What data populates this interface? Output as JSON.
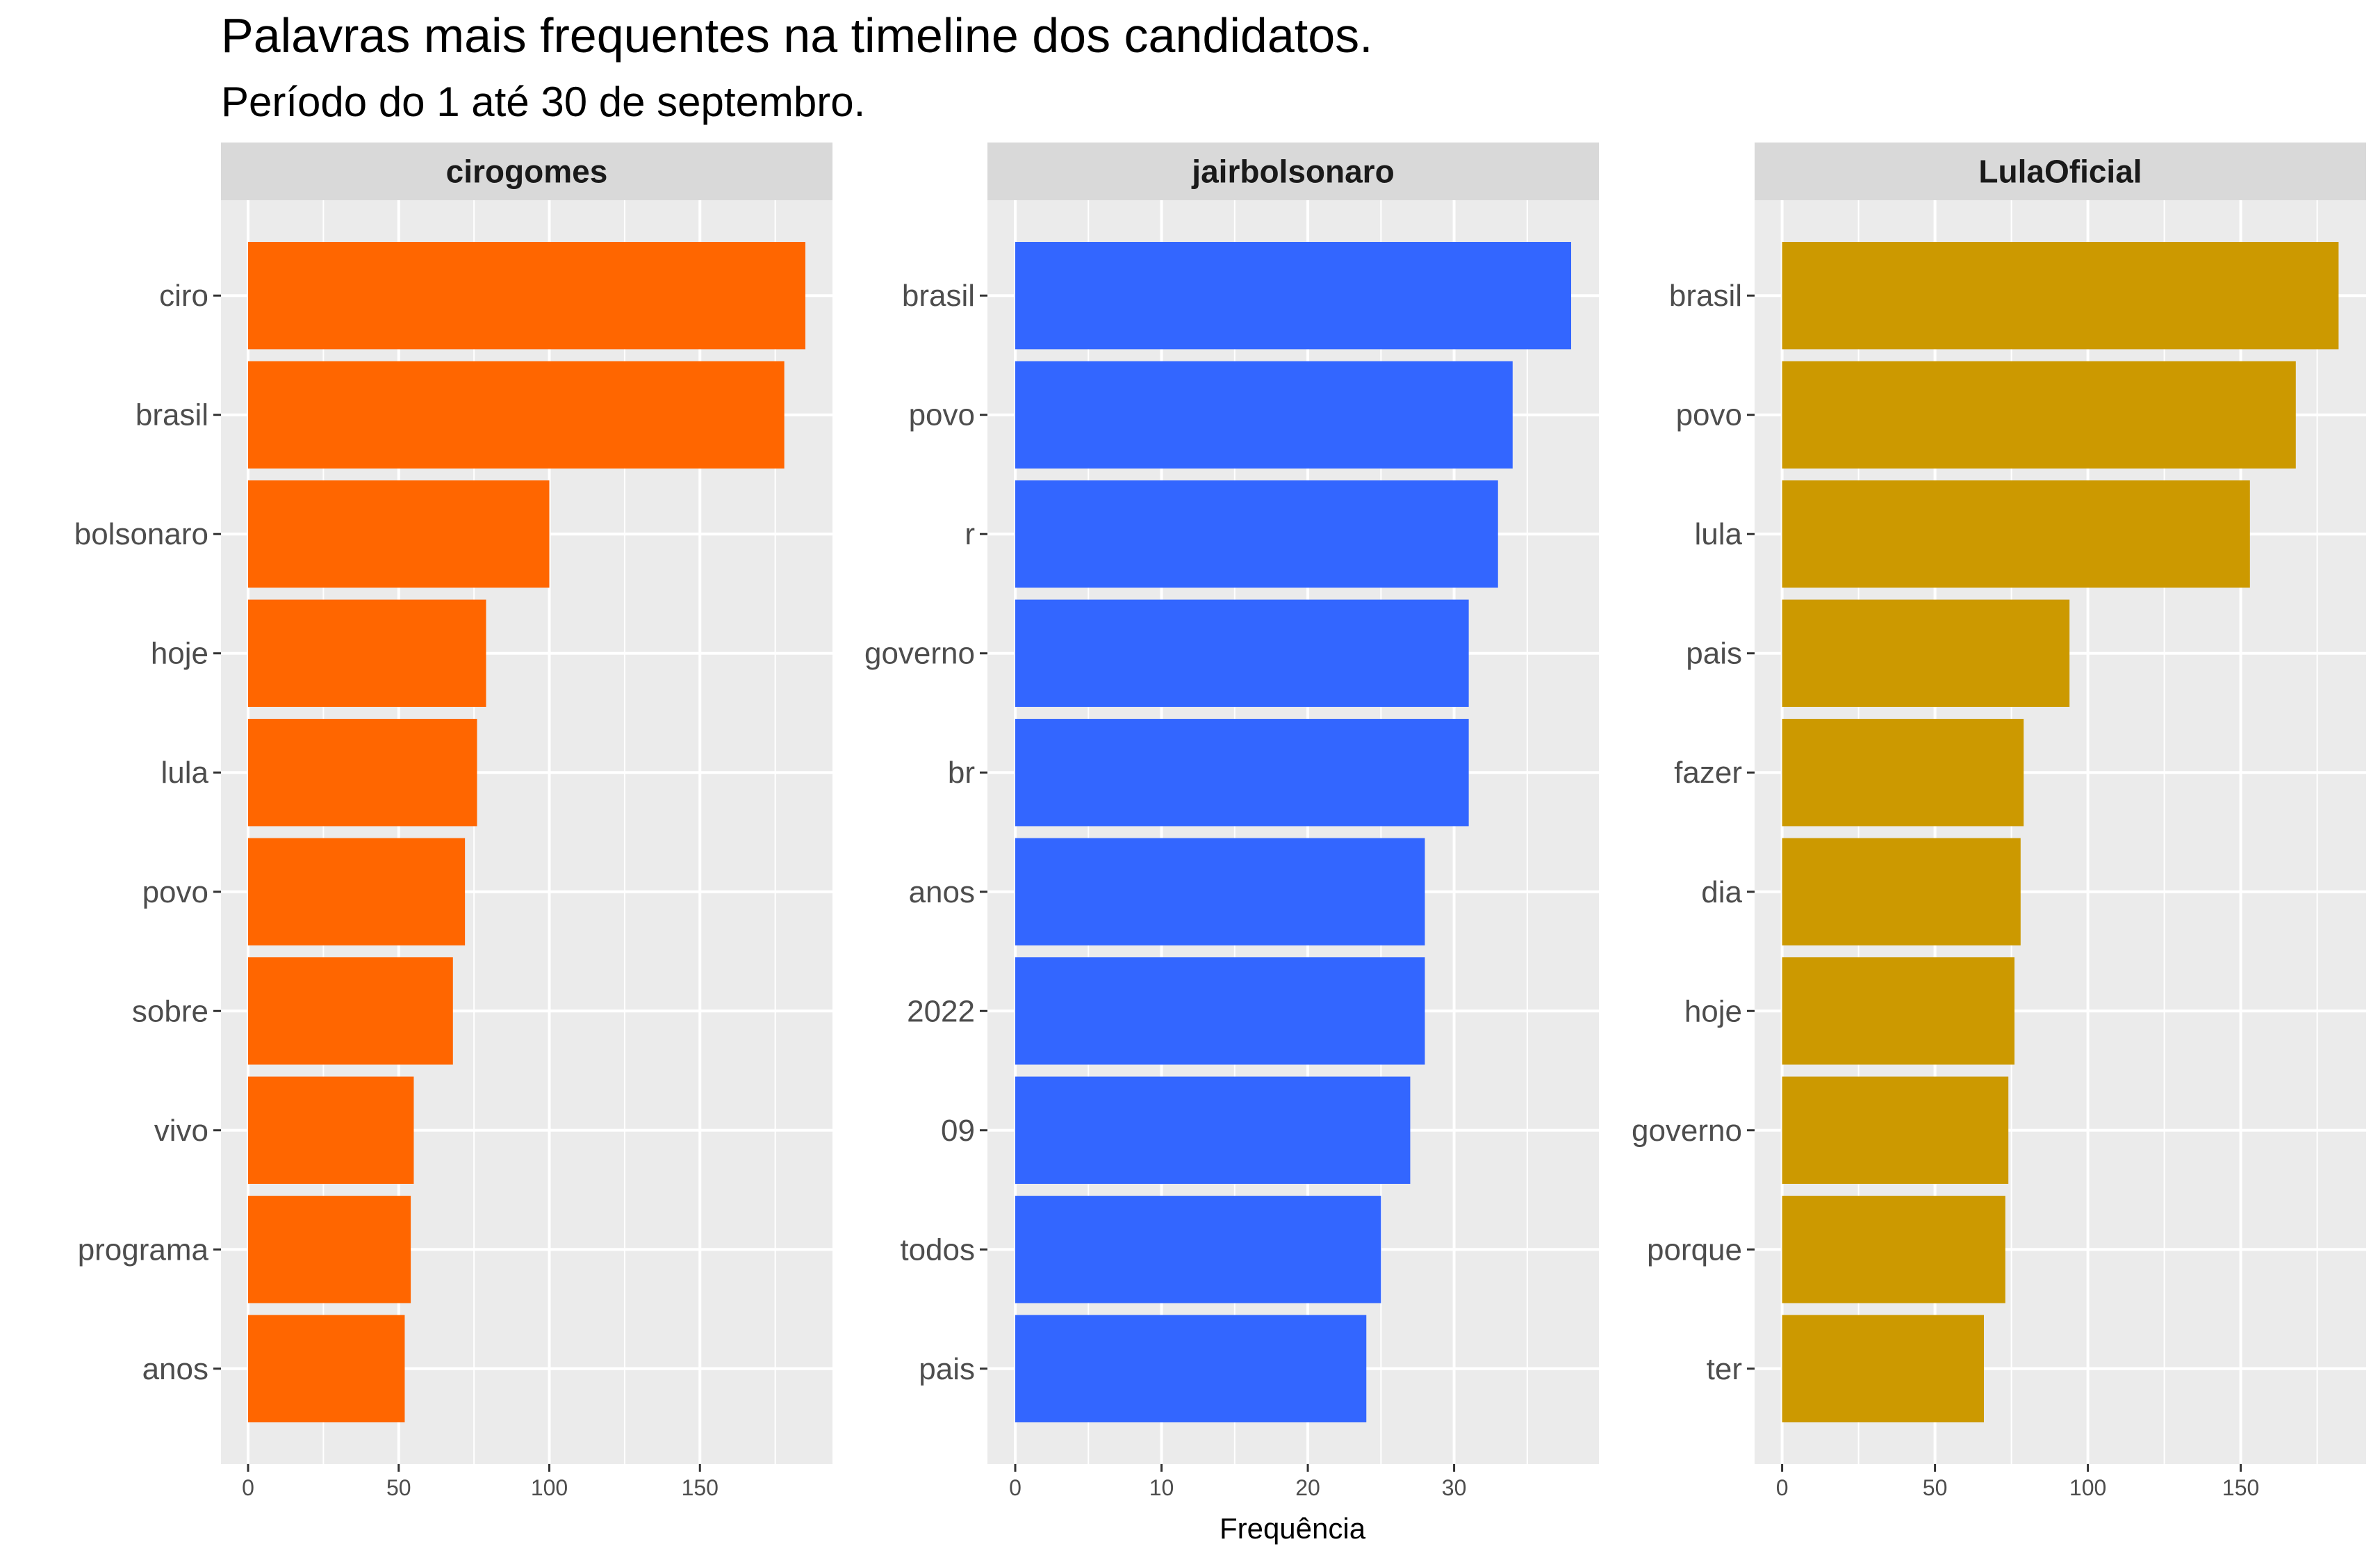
{
  "title": "Palavras mais frequentes na timeline dos candidatos.",
  "subtitle": "Período do 1 até 30 de septembro.",
  "xlabel": "Frequência",
  "colors": {
    "panel_bg": "#ebebeb",
    "strip_bg": "#d9d9d9",
    "grid": "#ffffff"
  },
  "chart_data": {
    "type": "bar",
    "orientation": "horizontal",
    "title": "Palavras mais frequentes na timeline dos candidatos.",
    "subtitle": "Período do 1 até 30 de septembro.",
    "xlabel": "Frequência",
    "ylabel": "",
    "grid": true,
    "facets": [
      {
        "name": "cirogomes",
        "color": "#ff6600",
        "categories": [
          "ciro",
          "brasil",
          "bolsonaro",
          "hoje",
          "lula",
          "povo",
          "sobre",
          "vivo",
          "programa",
          "anos"
        ],
        "values": [
          185,
          178,
          100,
          79,
          76,
          72,
          68,
          55,
          54,
          52
        ],
        "xlim": [
          -9,
          194
        ],
        "xticks": [
          0,
          50,
          100,
          150
        ]
      },
      {
        "name": "jairbolsonaro",
        "color": "#3366ff",
        "categories": [
          "brasil",
          "povo",
          "r",
          "governo",
          "br",
          "anos",
          "2022",
          "09",
          "todos",
          "pais"
        ],
        "values": [
          38,
          34,
          33,
          31,
          31,
          28,
          28,
          27,
          25,
          24
        ],
        "xlim": [
          -1.9,
          39.9
        ],
        "xticks": [
          0,
          10,
          20,
          30
        ]
      },
      {
        "name": "LulaOficial",
        "color": "#cc9900",
        "categories": [
          "brasil",
          "povo",
          "lula",
          "pais",
          "fazer",
          "dia",
          "hoje",
          "governo",
          "porque",
          "ter"
        ],
        "values": [
          182,
          168,
          153,
          94,
          79,
          78,
          76,
          74,
          73,
          66
        ],
        "xlim": [
          -9,
          191
        ],
        "xticks": [
          0,
          50,
          100,
          150
        ]
      }
    ]
  }
}
